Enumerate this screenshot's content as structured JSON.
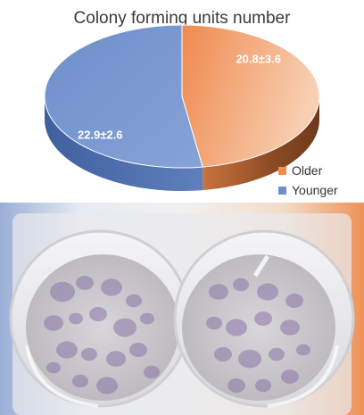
{
  "chart_data": {
    "type": "pie",
    "title": "Colony forming units number",
    "categories": [
      "Older",
      "Younger"
    ],
    "values": [
      20.8,
      22.9
    ],
    "labels": [
      "20.8±3.6",
      "22.9±2.6"
    ],
    "legend_position": "bottom-right",
    "style": "3d"
  },
  "colors": {
    "older": "#ef8d55",
    "older_light": "#f6c7a6",
    "older_side": "#8f4d25",
    "younger": "#6e8fcc",
    "younger_side": "#4e6aa3"
  },
  "photo": {
    "description_icon": "two-culture-wells-photo"
  }
}
